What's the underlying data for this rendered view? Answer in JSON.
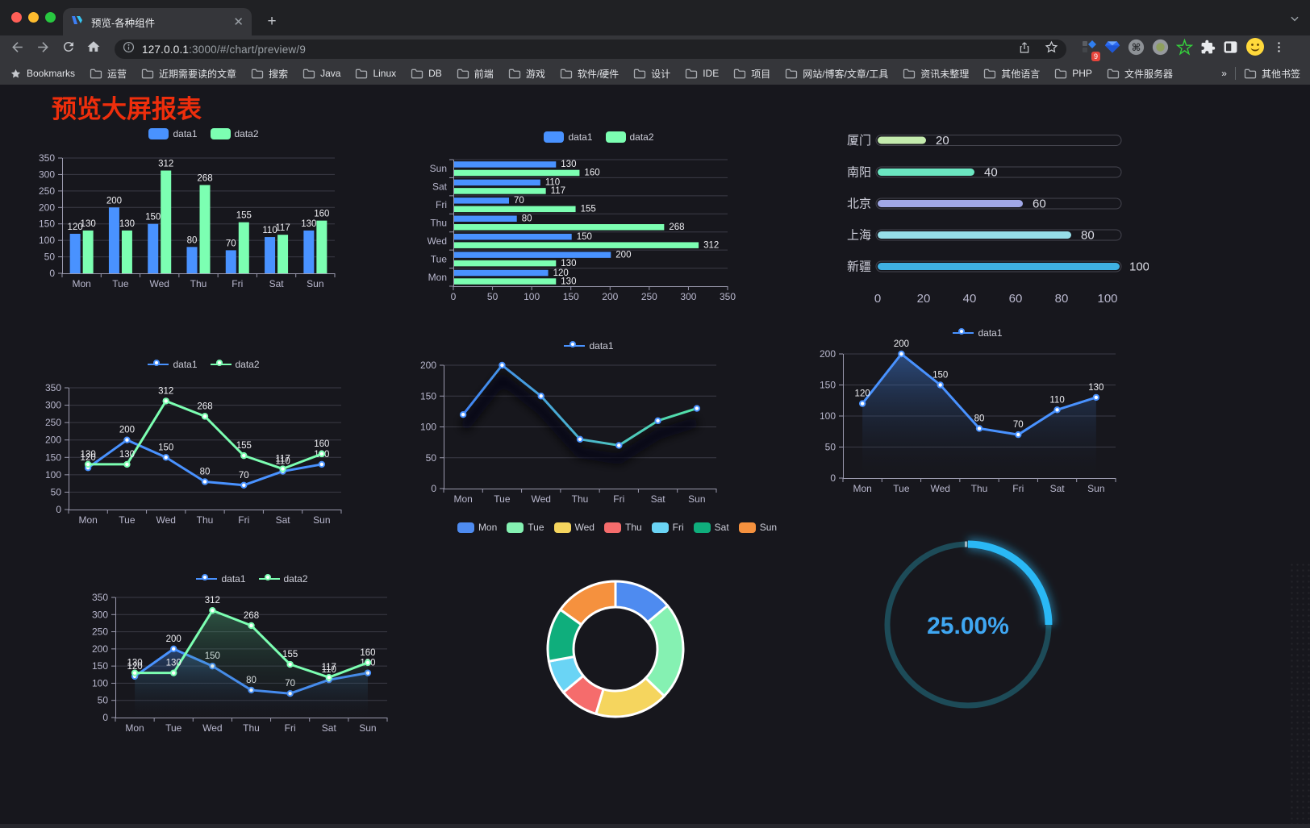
{
  "browser": {
    "traffic_lights": [
      "#ff5f57",
      "#febc2e",
      "#28c840"
    ],
    "tab": {
      "title": "预览-各种组件",
      "close": "✕"
    },
    "new_tab_label": "+",
    "url": {
      "host": "127.0.0.1",
      "rest": ":3000/#/chart/preview/9"
    },
    "bookmarks_label": "Bookmarks",
    "bookmark_folders": [
      "运营",
      "近期需要读的文章",
      "搜索",
      "Java",
      "Linux",
      "DB",
      "前端",
      "游戏",
      "软件/硬件",
      "设计",
      "IDE",
      "项目",
      "网站/博客/文章/工具",
      "资讯未整理",
      "其他语言",
      "PHP",
      "文件服务器"
    ],
    "overflow_chevron": "»",
    "other_bookmarks": "其他书签",
    "extension_badge": "9"
  },
  "page": {
    "title": "预览大屏报表",
    "title_color": "#ee2e0c",
    "background": "#17171d"
  },
  "chart_data": [
    {
      "id": "bar-grouped",
      "type": "bar",
      "categories": [
        "Mon",
        "Tue",
        "Wed",
        "Thu",
        "Fri",
        "Sat",
        "Sun"
      ],
      "series": [
        {
          "name": "data1",
          "color": "#4992ff",
          "values": [
            120,
            200,
            150,
            80,
            70,
            110,
            130
          ]
        },
        {
          "name": "data2",
          "color": "#7cffb2",
          "values": [
            130,
            130,
            312,
            268,
            155,
            117,
            160
          ]
        }
      ],
      "ylim": [
        0,
        350
      ],
      "ystep": 50,
      "legend": "rect",
      "grid": true
    },
    {
      "id": "bar-horizontal",
      "type": "bar-horizontal",
      "categories": [
        "Mon",
        "Tue",
        "Wed",
        "Thu",
        "Fri",
        "Sat",
        "Sun"
      ],
      "series": [
        {
          "name": "data1",
          "color": "#4992ff",
          "values": [
            120,
            200,
            150,
            80,
            70,
            110,
            130
          ]
        },
        {
          "name": "data2",
          "color": "#7cffb2",
          "values": [
            130,
            130,
            312,
            268,
            155,
            117,
            160
          ]
        }
      ],
      "xlim": [
        0,
        350
      ],
      "xstep": 50,
      "legend": "rect"
    },
    {
      "id": "progress",
      "type": "progress",
      "xlim": [
        0,
        100
      ],
      "ticks": [
        0,
        20,
        40,
        60,
        80,
        100
      ],
      "rows": [
        {
          "label": "厦门",
          "value": 20,
          "color": "#c4ebad"
        },
        {
          "label": "南阳",
          "value": 40,
          "color": "#6be6c1"
        },
        {
          "label": "北京",
          "value": 60,
          "color": "#a0a7e6"
        },
        {
          "label": "上海",
          "value": 80,
          "color": "#96dee8"
        },
        {
          "label": "新疆",
          "value": 100,
          "color": "#3fb1e3"
        }
      ]
    },
    {
      "id": "line-two",
      "type": "line",
      "categories": [
        "Mon",
        "Tue",
        "Wed",
        "Thu",
        "Fri",
        "Sat",
        "Sun"
      ],
      "series": [
        {
          "name": "data1",
          "color": "#4992ff",
          "values": [
            120,
            200,
            150,
            80,
            70,
            110,
            130
          ]
        },
        {
          "name": "data2",
          "color": "#7cffb2",
          "values": [
            130,
            130,
            312,
            268,
            155,
            117,
            160
          ]
        }
      ],
      "ylim": [
        0,
        350
      ],
      "ystep": 50,
      "labels": true,
      "legend": "line"
    },
    {
      "id": "line-gradient",
      "type": "line",
      "categories": [
        "Mon",
        "Tue",
        "Wed",
        "Thu",
        "Fri",
        "Sat",
        "Sun"
      ],
      "series": [
        {
          "name": "data1",
          "gradient": [
            "#4183f4",
            "#53e5a6"
          ],
          "color": "#4992ff",
          "values": [
            120,
            200,
            150,
            80,
            70,
            110,
            130
          ]
        }
      ],
      "ylim": [
        0,
        200
      ],
      "ystep": 50,
      "labels": false,
      "shadow": true,
      "legend": "line"
    },
    {
      "id": "line-area",
      "type": "line",
      "categories": [
        "Mon",
        "Tue",
        "Wed",
        "Thu",
        "Fri",
        "Sat",
        "Sun"
      ],
      "series": [
        {
          "name": "data1",
          "color": "#4992ff",
          "values": [
            120,
            200,
            150,
            80,
            70,
            110,
            130
          ],
          "area": "rgba(73,146,255,0.42)"
        }
      ],
      "ylim": [
        0,
        200
      ],
      "ystep": 50,
      "labels": true,
      "legend": "line"
    },
    {
      "id": "line-area-two",
      "type": "line",
      "categories": [
        "Mon",
        "Tue",
        "Wed",
        "Thu",
        "Fri",
        "Sat",
        "Sun"
      ],
      "series": [
        {
          "name": "data1",
          "color": "#4992ff",
          "values": [
            120,
            200,
            150,
            80,
            70,
            110,
            130
          ],
          "area": "rgba(73,146,255,0.35)"
        },
        {
          "name": "data2",
          "color": "#7cffb2",
          "values": [
            130,
            130,
            312,
            268,
            155,
            117,
            160
          ],
          "area": "rgba(94,220,150,0.30)"
        }
      ],
      "ylim": [
        0,
        350
      ],
      "ystep": 50,
      "labels": true,
      "legend": "line"
    },
    {
      "id": "donut",
      "type": "donut",
      "items": [
        {
          "label": "Mon",
          "value": 120,
          "color": "#4e8bf0"
        },
        {
          "label": "Tue",
          "value": 200,
          "color": "#85f1b2"
        },
        {
          "label": "Wed",
          "value": 150,
          "color": "#f5d55e"
        },
        {
          "label": "Thu",
          "value": 80,
          "color": "#f56c6c"
        },
        {
          "label": "Fri",
          "value": 70,
          "color": "#6ad4f5"
        },
        {
          "label": "Sat",
          "value": 110,
          "color": "#0fae7c"
        },
        {
          "label": "Sun",
          "value": 130,
          "color": "#f5913e"
        }
      ]
    },
    {
      "id": "gauge",
      "type": "gauge",
      "value": 25,
      "label": "25.00%",
      "progress_color": "#2ab8f5",
      "track_color": "#1d4b58",
      "text_color": "#3fa7f2"
    }
  ]
}
